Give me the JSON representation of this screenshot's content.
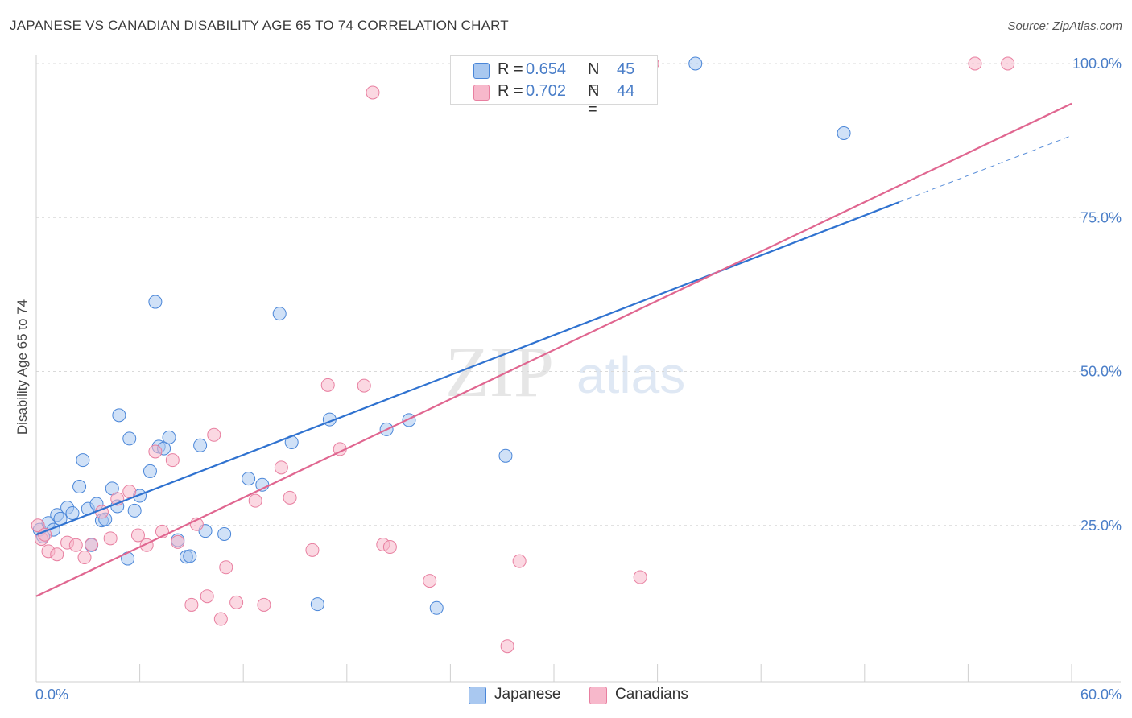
{
  "header": {
    "title": "JAPANESE VS CANADIAN DISABILITY AGE 65 TO 74 CORRELATION CHART",
    "source": "Source: ZipAtlas.com"
  },
  "stats": [
    {
      "r_label": "R = ",
      "r_value": "0.654",
      "n_label": "N = ",
      "n_value": "45",
      "color": "#a9c8f0"
    },
    {
      "r_label": "R = ",
      "r_value": "0.702",
      "n_label": "N = ",
      "n_value": "44",
      "color": "#f7b8cb"
    }
  ],
  "legend": [
    {
      "label": "Japanese",
      "color": "#a9c8f0"
    },
    {
      "label": "Canadians",
      "color": "#f7b8cb"
    }
  ],
  "watermark": {
    "zip": "ZIP",
    "atlas": "atlas"
  },
  "chart_data": {
    "type": "scatter",
    "title": "JAPANESE VS CANADIAN DISABILITY AGE 65 TO 74 CORRELATION CHART",
    "xlabel": "",
    "ylabel": "Disability Age 65 to 74",
    "xlim": [
      0,
      60
    ],
    "ylim": [
      0,
      102
    ],
    "x_tick_labels": [
      "0.0%",
      "60.0%"
    ],
    "y_ticks": [
      25,
      50,
      75,
      100
    ],
    "y_tick_labels": [
      "25.0%",
      "50.0%",
      "75.0%",
      "100.0%"
    ],
    "grid": true,
    "legend_position": "bottom",
    "series": [
      {
        "name": "Japanese",
        "color": "#4a86d8",
        "fill": "#a9c8f0",
        "line_color": "#2f72d0",
        "trend": {
          "x": [
            0,
            50
          ],
          "y": [
            23.5,
            77.5
          ],
          "dashed_to": [
            60,
            88.3
          ]
        },
        "points": [
          [
            0.2,
            24.3
          ],
          [
            0.4,
            23.2
          ],
          [
            0.7,
            25.4
          ],
          [
            1.0,
            24.3
          ],
          [
            1.2,
            26.7
          ],
          [
            1.4,
            26.1
          ],
          [
            1.8,
            27.9
          ],
          [
            2.1,
            27.0
          ],
          [
            2.5,
            31.3
          ],
          [
            2.7,
            35.6
          ],
          [
            3.0,
            27.7
          ],
          [
            3.2,
            21.8
          ],
          [
            3.5,
            28.5
          ],
          [
            3.8,
            25.8
          ],
          [
            4.0,
            26.0
          ],
          [
            4.4,
            31.0
          ],
          [
            4.7,
            28.1
          ],
          [
            4.8,
            42.9
          ],
          [
            5.3,
            19.6
          ],
          [
            5.4,
            39.1
          ],
          [
            5.7,
            27.4
          ],
          [
            6.0,
            29.8
          ],
          [
            6.6,
            33.8
          ],
          [
            6.9,
            61.3
          ],
          [
            7.1,
            37.8
          ],
          [
            7.4,
            37.5
          ],
          [
            7.7,
            39.3
          ],
          [
            8.2,
            22.6
          ],
          [
            8.7,
            19.9
          ],
          [
            8.9,
            20.0
          ],
          [
            9.5,
            38.0
          ],
          [
            9.8,
            24.1
          ],
          [
            10.9,
            23.6
          ],
          [
            12.3,
            32.6
          ],
          [
            13.1,
            31.6
          ],
          [
            14.1,
            59.4
          ],
          [
            14.8,
            38.5
          ],
          [
            16.3,
            12.2
          ],
          [
            17.0,
            42.2
          ],
          [
            20.3,
            40.6
          ],
          [
            21.6,
            42.1
          ],
          [
            23.2,
            11.6
          ],
          [
            27.2,
            36.3
          ],
          [
            38.2,
            100
          ],
          [
            46.8,
            88.7
          ]
        ]
      },
      {
        "name": "Canadians",
        "color": "#e87fa0",
        "fill": "#f7b8cb",
        "line_color": "#e06690",
        "trend": {
          "x": [
            0,
            60
          ],
          "y": [
            13.5,
            93.5
          ]
        },
        "points": [
          [
            0.1,
            25.0
          ],
          [
            0.3,
            22.8
          ],
          [
            0.5,
            23.5
          ],
          [
            0.7,
            20.8
          ],
          [
            1.2,
            20.3
          ],
          [
            1.8,
            22.2
          ],
          [
            2.3,
            21.8
          ],
          [
            2.8,
            19.8
          ],
          [
            3.2,
            21.9
          ],
          [
            3.8,
            27.2
          ],
          [
            4.3,
            22.9
          ],
          [
            4.7,
            29.3
          ],
          [
            5.4,
            30.5
          ],
          [
            5.9,
            23.4
          ],
          [
            6.4,
            21.8
          ],
          [
            6.9,
            37.0
          ],
          [
            7.3,
            24.0
          ],
          [
            7.9,
            35.6
          ],
          [
            8.2,
            22.3
          ],
          [
            9.0,
            12.1
          ],
          [
            9.3,
            25.2
          ],
          [
            9.9,
            13.5
          ],
          [
            10.3,
            39.7
          ],
          [
            10.7,
            9.8
          ],
          [
            11.0,
            18.2
          ],
          [
            11.6,
            12.5
          ],
          [
            12.7,
            29.0
          ],
          [
            13.2,
            12.1
          ],
          [
            14.2,
            34.4
          ],
          [
            14.7,
            29.5
          ],
          [
            16.0,
            21.0
          ],
          [
            16.9,
            47.8
          ],
          [
            17.6,
            37.4
          ],
          [
            19.0,
            47.7
          ],
          [
            19.5,
            95.3
          ],
          [
            20.1,
            21.9
          ],
          [
            20.5,
            21.5
          ],
          [
            22.8,
            16.0
          ],
          [
            27.3,
            5.4
          ],
          [
            28.0,
            19.2
          ],
          [
            35.0,
            16.6
          ],
          [
            35.7,
            100
          ],
          [
            54.4,
            100
          ],
          [
            56.3,
            100
          ]
        ]
      }
    ]
  }
}
